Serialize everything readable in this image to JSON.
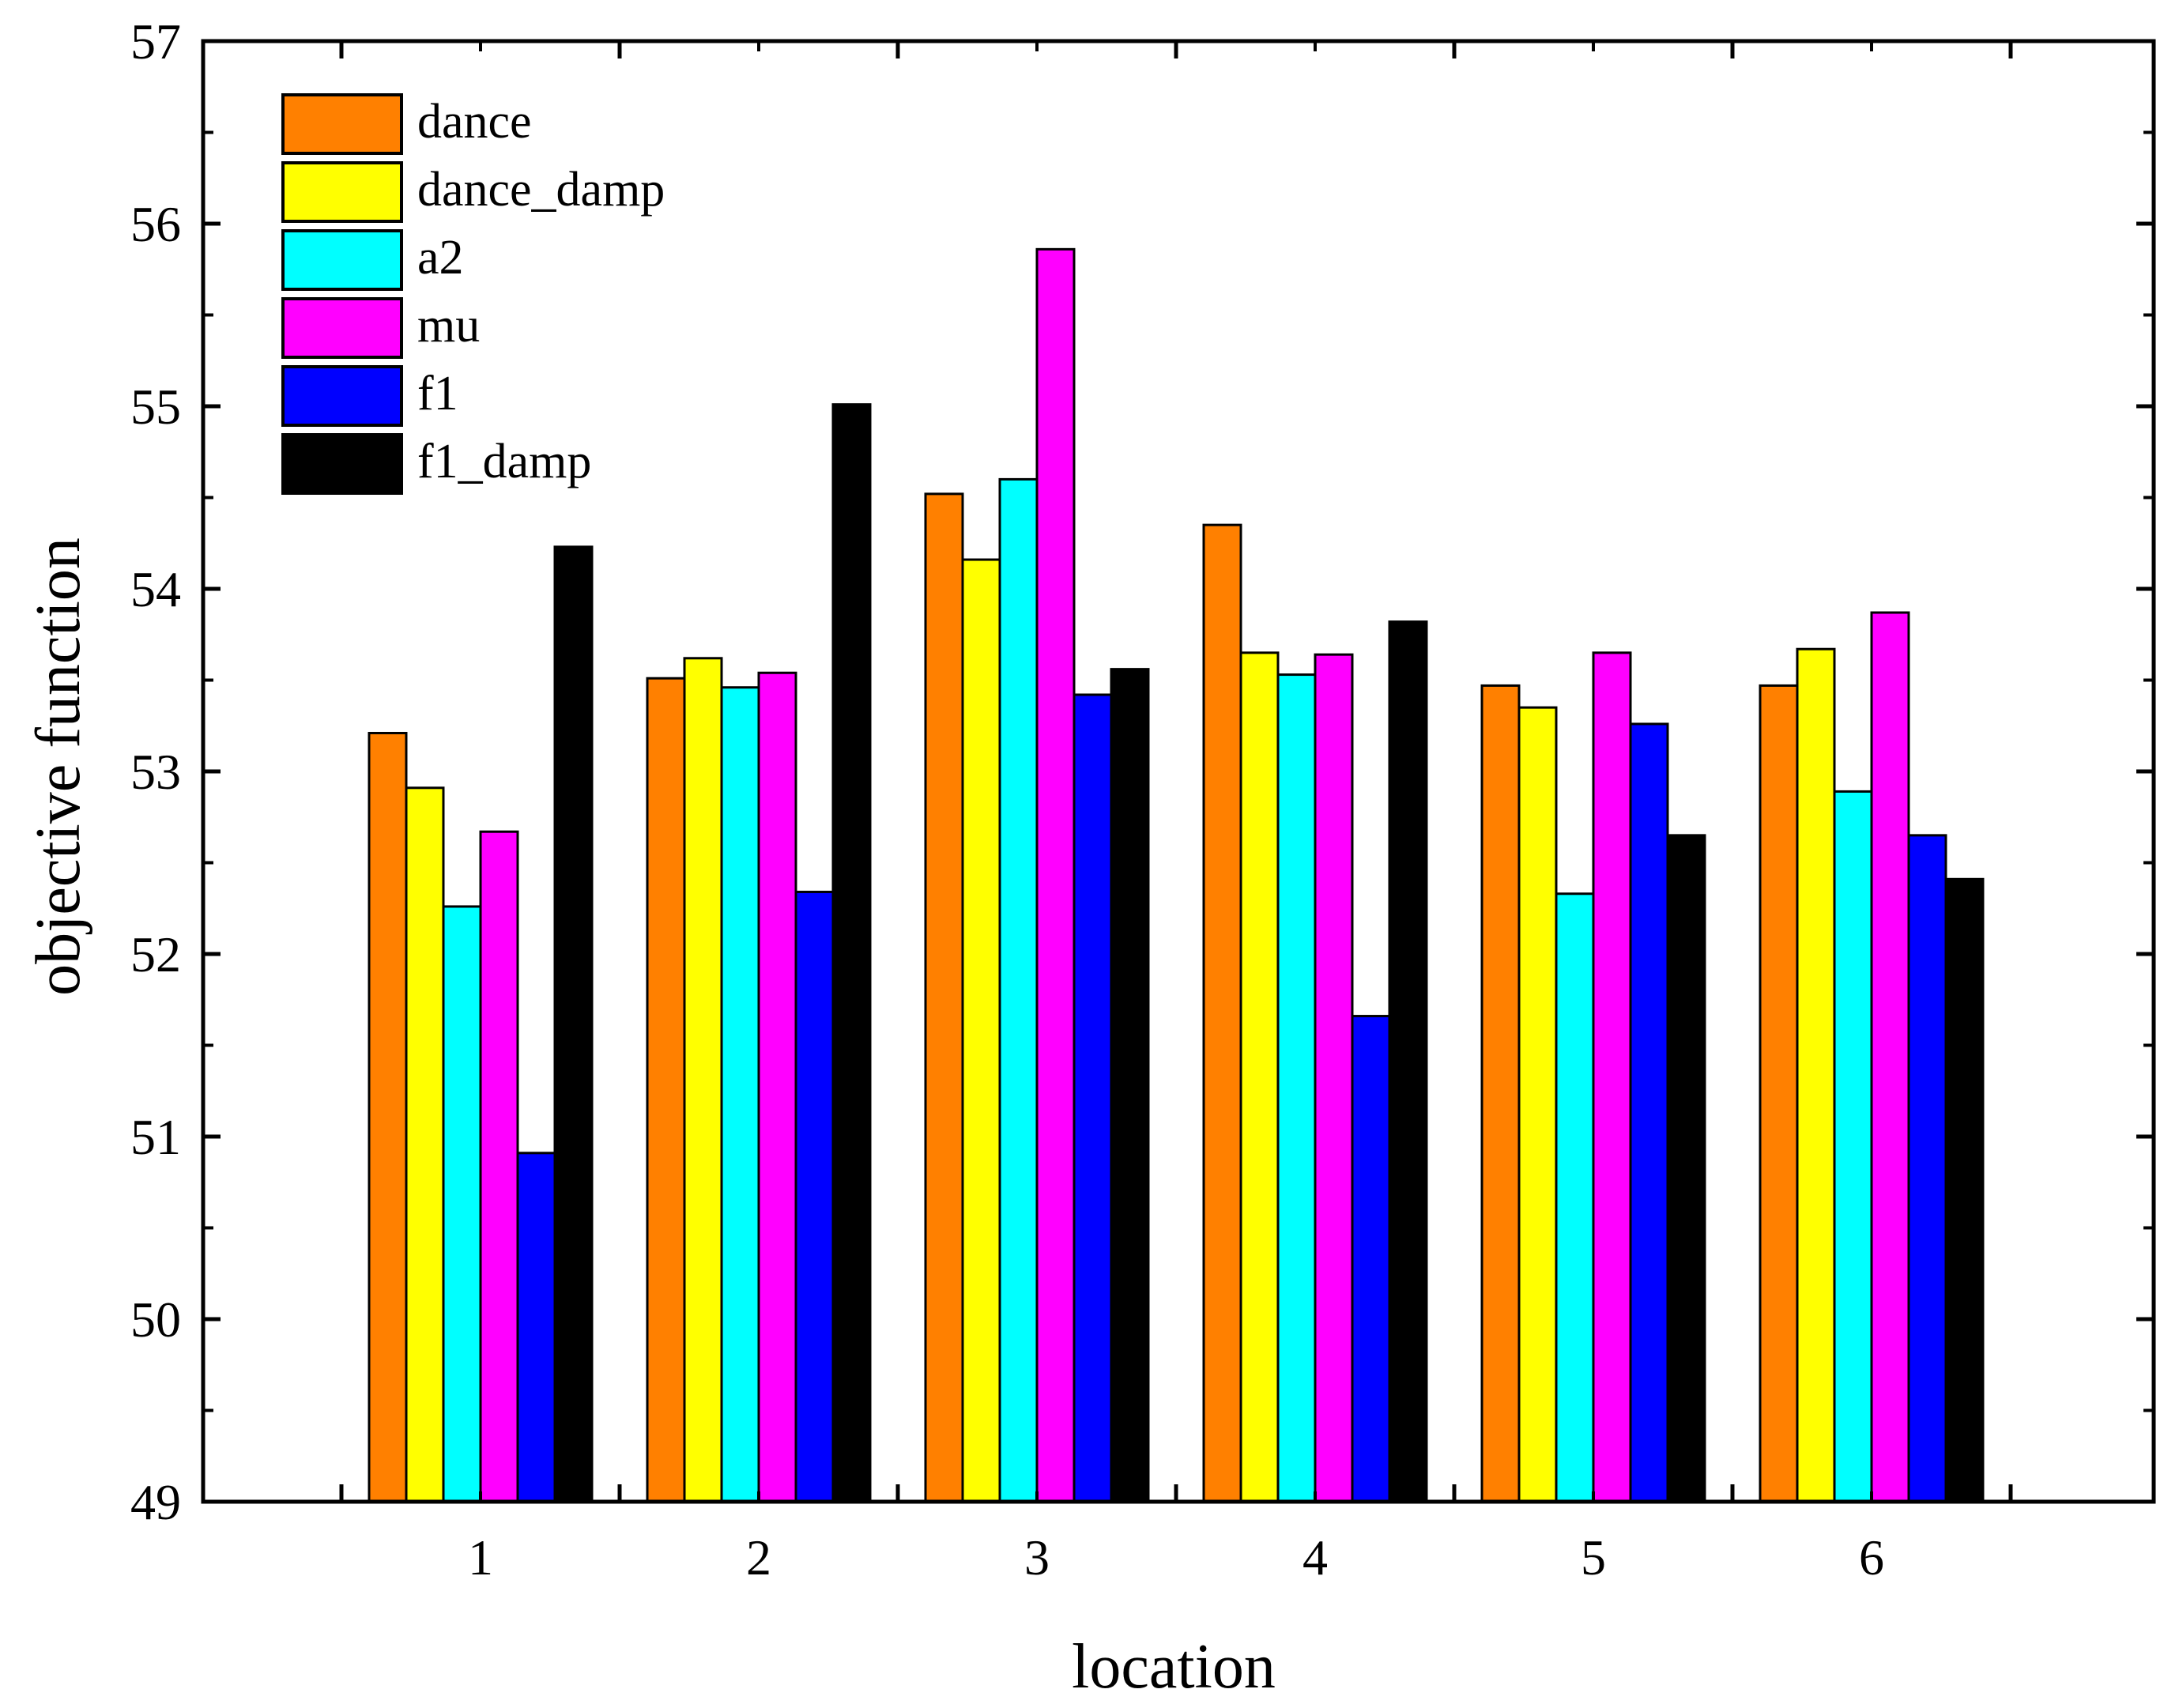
{
  "chart_data": {
    "type": "bar",
    "title": "",
    "xlabel": "location",
    "ylabel": "objective function",
    "categories": [
      "1",
      "2",
      "3",
      "4",
      "5",
      "6"
    ],
    "ylim": [
      49,
      57
    ],
    "yticks": [
      "49",
      "50",
      "51",
      "52",
      "53",
      "54",
      "55",
      "56",
      "57"
    ],
    "legend_position": "top-left",
    "series": [
      {
        "name": "dance",
        "color": "#FF8000",
        "values": [
          53.21,
          53.51,
          54.52,
          54.35,
          53.47,
          53.47
        ]
      },
      {
        "name": "dance_damp",
        "color": "#FFFF00",
        "values": [
          52.91,
          53.62,
          54.16,
          53.65,
          53.35,
          53.67
        ]
      },
      {
        "name": "a2",
        "color": "#00FFFF",
        "values": [
          52.26,
          53.46,
          54.6,
          53.53,
          52.33,
          52.89
        ]
      },
      {
        "name": "mu",
        "color": "#FF00FF",
        "values": [
          52.67,
          53.54,
          55.86,
          53.64,
          53.65,
          53.87
        ]
      },
      {
        "name": "f1",
        "color": "#0000FF",
        "values": [
          50.91,
          52.34,
          53.42,
          51.66,
          53.26,
          52.65
        ]
      },
      {
        "name": "f1_damp",
        "color": "#000000",
        "values": [
          54.23,
          55.01,
          53.56,
          53.82,
          52.65,
          52.41
        ]
      }
    ]
  }
}
